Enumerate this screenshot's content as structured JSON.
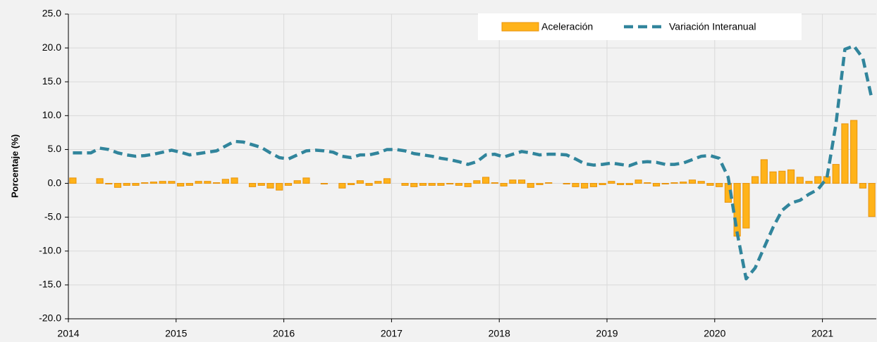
{
  "chart_data": {
    "type": "bar_line",
    "y_label": "Porcentaje (%)",
    "categories": [
      "2014",
      null,
      null,
      null,
      null,
      null,
      null,
      null,
      null,
      null,
      null,
      null,
      "2015",
      null,
      null,
      null,
      null,
      null,
      null,
      null,
      null,
      null,
      null,
      null,
      "2016",
      null,
      null,
      null,
      null,
      null,
      null,
      null,
      null,
      null,
      null,
      null,
      "2017",
      null,
      null,
      null,
      null,
      null,
      null,
      null,
      null,
      null,
      null,
      null,
      "2018",
      null,
      null,
      null,
      null,
      null,
      null,
      null,
      null,
      null,
      null,
      null,
      "2019",
      null,
      null,
      null,
      null,
      null,
      null,
      null,
      null,
      null,
      null,
      null,
      "2020",
      null,
      null,
      null,
      null,
      null,
      null,
      null,
      null,
      null,
      null,
      null,
      "2021",
      null,
      null,
      null,
      null,
      null
    ],
    "series": [
      {
        "name": "Aceleración",
        "color": "#ffb31a",
        "type": "bar",
        "values": [
          0.8,
          0,
          0,
          0.7,
          -0.1,
          -0.6,
          -0.3,
          -0.3,
          0.1,
          0.2,
          0.3,
          0.3,
          -0.4,
          -0.3,
          0.3,
          0.3,
          0.1,
          0.6,
          0.8,
          0,
          -0.5,
          -0.3,
          -0.7,
          -1.0,
          -0.3,
          0.4,
          0.8,
          0,
          -0.1,
          0,
          -0.7,
          -0.2,
          0.4,
          -0.3,
          0.3,
          0.7,
          0,
          -0.3,
          -0.5,
          -0.3,
          -0.3,
          -0.3,
          -0.1,
          -0.3,
          -0.5,
          0.4,
          0.9,
          0.1,
          -0.4,
          0.5,
          0.5,
          -0.6,
          -0.2,
          0.1,
          0,
          -0.1,
          -0.5,
          -0.7,
          -0.5,
          -0.2,
          0.3,
          -0.2,
          -0.2,
          0.5,
          0.1,
          -0.4,
          -0.1,
          0.1,
          0.2,
          0.5,
          0.3,
          -0.3,
          -0.5,
          -2.8,
          -7.8,
          -6.6,
          1.0,
          3.5,
          1.7,
          1.8,
          2.0,
          0.9,
          0.3,
          1.0,
          1.0,
          2.8,
          8.8,
          9.3,
          -0.7,
          -4.9
        ]
      },
      {
        "name": "Variación Interanual",
        "color": "#31859c",
        "type": "line",
        "values": [
          4.5,
          4.5,
          4.5,
          5.2,
          5.0,
          4.5,
          4.2,
          4.0,
          4.1,
          4.3,
          4.6,
          4.9,
          4.6,
          4.2,
          4.4,
          4.6,
          4.8,
          5.5,
          6.2,
          6.1,
          5.7,
          5.3,
          4.5,
          3.8,
          3.6,
          4.2,
          4.8,
          4.9,
          4.8,
          4.6,
          4.0,
          3.8,
          4.2,
          4.2,
          4.5,
          5.0,
          5.0,
          4.8,
          4.4,
          4.2,
          4.0,
          3.7,
          3.5,
          3.2,
          2.8,
          3.2,
          4.2,
          4.3,
          3.9,
          4.3,
          4.7,
          4.5,
          4.2,
          4.3,
          4.3,
          4.2,
          3.6,
          2.9,
          2.7,
          2.8,
          3.0,
          2.8,
          2.6,
          3.1,
          3.2,
          3.1,
          2.8,
          2.8,
          3.0,
          3.5,
          4.0,
          4.1,
          3.7,
          0.9,
          -7.3,
          -14.1,
          -12.5,
          -9.5,
          -6.5,
          -4.0,
          -2.9,
          -2.5,
          -1.6,
          -0.9,
          0.8,
          8.7,
          19.8,
          20.3,
          18.5,
          12.5
        ]
      }
    ],
    "ylim": [
      -20,
      25
    ],
    "yticks": [
      {
        "value": -20,
        "label": "-20.0"
      },
      {
        "value": -15,
        "label": "-15.0"
      },
      {
        "value": -10,
        "label": "-10.0"
      },
      {
        "value": -5,
        "label": "-5.0"
      },
      {
        "value": 0,
        "label": "0.0"
      },
      {
        "value": 5,
        "label": "5.0"
      },
      {
        "value": 10,
        "label": "10.0"
      },
      {
        "value": 15,
        "label": "15.0"
      },
      {
        "value": 20,
        "label": "20.0"
      },
      {
        "value": 25,
        "label": "25.0"
      }
    ],
    "grid": true,
    "legend": "top-right"
  }
}
